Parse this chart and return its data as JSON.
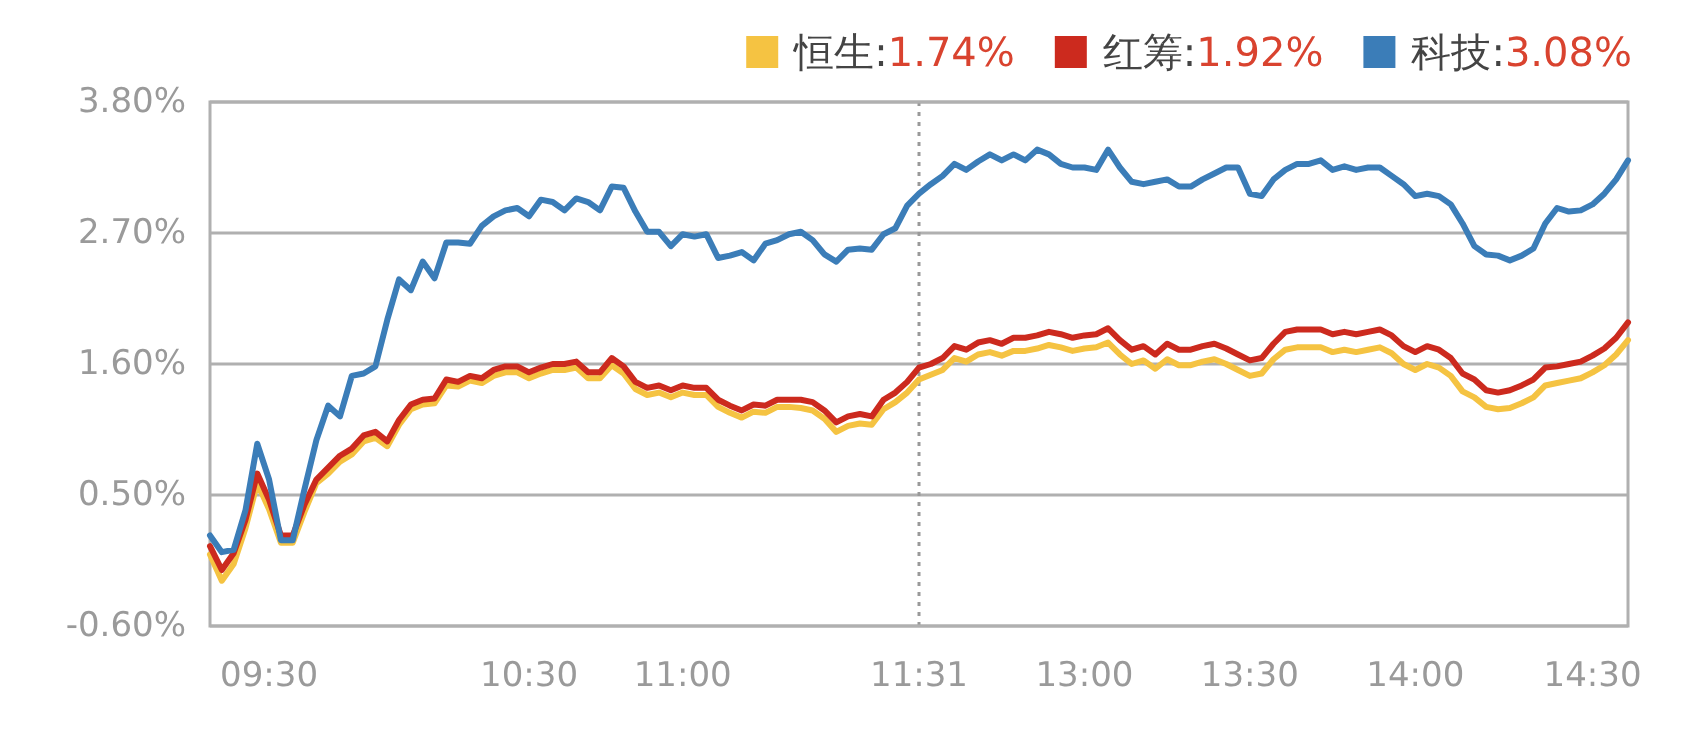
{
  "chart_data": {
    "type": "line",
    "legend": "top right",
    "grid": "y",
    "categories": [
      null,
      null,
      null,
      null,
      null,
      "09:30",
      null,
      null,
      null,
      null,
      null,
      null,
      null,
      null,
      null,
      null,
      null,
      null,
      null,
      null,
      null,
      null,
      null,
      null,
      null,
      null,
      null,
      "10:30",
      null,
      null,
      null,
      null,
      null,
      null,
      null,
      null,
      null,
      null,
      null,
      null,
      "11:00",
      null,
      null,
      null,
      null,
      null,
      null,
      null,
      null,
      null,
      null,
      null,
      null,
      null,
      null,
      null,
      null,
      null,
      null,
      null,
      "11:31",
      null,
      null,
      null,
      null,
      null,
      null,
      null,
      null,
      null,
      null,
      null,
      null,
      null,
      "13:00",
      null,
      null,
      null,
      null,
      null,
      null,
      null,
      null,
      null,
      null,
      null,
      null,
      null,
      "13:30",
      null,
      null,
      null,
      null,
      null,
      null,
      null,
      null,
      null,
      null,
      null,
      null,
      null,
      "14:00",
      null,
      null,
      null,
      null,
      null,
      null,
      null,
      null,
      null,
      null,
      null,
      null,
      null,
      null,
      "14:30",
      null,
      null,
      null
    ],
    "ylim": [
      -0.6,
      3.8
    ],
    "yticks": [
      {
        "value": -0.6,
        "label": "-0.60%"
      },
      {
        "value": 0.5,
        "label": "0.50%"
      },
      {
        "value": 1.6,
        "label": "1.60%"
      },
      {
        "value": 2.7,
        "label": "2.70%"
      },
      {
        "value": 3.8,
        "label": "3.80%"
      }
    ],
    "ref_lines": [
      {
        "axis": "x",
        "value": "11:31",
        "line_style": "dotted",
        "color": "#999999"
      }
    ],
    "series": [
      {
        "name": "恒生:1.74%",
        "color": "#f5c342",
        "values": [
          0.0,
          -0.22,
          -0.08,
          0.22,
          0.6,
          0.38,
          0.1,
          0.1,
          0.36,
          0.6,
          0.68,
          0.78,
          0.84,
          0.95,
          0.98,
          0.91,
          1.09,
          1.22,
          1.26,
          1.27,
          1.42,
          1.41,
          1.46,
          1.44,
          1.5,
          1.53,
          1.53,
          1.48,
          1.52,
          1.55,
          1.55,
          1.57,
          1.48,
          1.48,
          1.59,
          1.52,
          1.39,
          1.34,
          1.36,
          1.32,
          1.36,
          1.34,
          1.34,
          1.24,
          1.19,
          1.15,
          1.2,
          1.19,
          1.24,
          1.24,
          1.23,
          1.21,
          1.14,
          1.03,
          1.08,
          1.1,
          1.09,
          1.22,
          1.28,
          1.36,
          1.47,
          1.51,
          1.55,
          1.65,
          1.62,
          1.68,
          1.7,
          1.67,
          1.71,
          1.71,
          1.73,
          1.76,
          1.74,
          1.71,
          1.73,
          1.74,
          1.78,
          1.68,
          1.6,
          1.63,
          1.56,
          1.64,
          1.59,
          1.59,
          1.62,
          1.64,
          1.6,
          1.55,
          1.5,
          1.52,
          1.64,
          1.72,
          1.74,
          1.74,
          1.74,
          1.7,
          1.72,
          1.7,
          1.72,
          1.74,
          1.69,
          1.6,
          1.55,
          1.6,
          1.57,
          1.5,
          1.37,
          1.32,
          1.24,
          1.22,
          1.23,
          1.27,
          1.32,
          1.42,
          1.44,
          1.46,
          1.48,
          1.53,
          1.59,
          1.68,
          1.8
        ]
      },
      {
        "name": "红筹:1.92%",
        "color": "#cc2a1e",
        "values": [
          0.07,
          -0.13,
          0.01,
          0.29,
          0.68,
          0.46,
          0.16,
          0.16,
          0.42,
          0.63,
          0.73,
          0.83,
          0.89,
          1.0,
          1.03,
          0.95,
          1.13,
          1.26,
          1.3,
          1.31,
          1.47,
          1.45,
          1.5,
          1.48,
          1.55,
          1.58,
          1.58,
          1.53,
          1.57,
          1.6,
          1.6,
          1.62,
          1.53,
          1.53,
          1.65,
          1.58,
          1.45,
          1.4,
          1.42,
          1.38,
          1.42,
          1.4,
          1.4,
          1.3,
          1.25,
          1.21,
          1.26,
          1.25,
          1.3,
          1.3,
          1.3,
          1.28,
          1.21,
          1.11,
          1.16,
          1.18,
          1.16,
          1.3,
          1.36,
          1.45,
          1.57,
          1.6,
          1.65,
          1.75,
          1.72,
          1.78,
          1.8,
          1.77,
          1.82,
          1.82,
          1.84,
          1.87,
          1.85,
          1.82,
          1.84,
          1.85,
          1.9,
          1.8,
          1.72,
          1.75,
          1.68,
          1.77,
          1.72,
          1.72,
          1.75,
          1.77,
          1.73,
          1.68,
          1.63,
          1.65,
          1.77,
          1.87,
          1.89,
          1.89,
          1.89,
          1.85,
          1.87,
          1.85,
          1.87,
          1.89,
          1.84,
          1.75,
          1.7,
          1.75,
          1.72,
          1.65,
          1.52,
          1.47,
          1.38,
          1.36,
          1.38,
          1.42,
          1.47,
          1.57,
          1.58,
          1.6,
          1.62,
          1.67,
          1.73,
          1.82,
          1.95
        ]
      },
      {
        "name": "科技:3.08%",
        "color": "#3b7db8",
        "values": [
          0.16,
          0.02,
          0.04,
          0.37,
          0.93,
          0.63,
          0.12,
          0.12,
          0.55,
          0.96,
          1.25,
          1.16,
          1.5,
          1.52,
          1.58,
          1.97,
          2.31,
          2.22,
          2.46,
          2.32,
          2.62,
          2.62,
          2.61,
          2.76,
          2.84,
          2.89,
          2.91,
          2.84,
          2.98,
          2.96,
          2.89,
          2.99,
          2.96,
          2.89,
          3.09,
          3.08,
          2.88,
          2.71,
          2.71,
          2.59,
          2.69,
          2.67,
          2.69,
          2.49,
          2.51,
          2.54,
          2.47,
          2.61,
          2.64,
          2.69,
          2.71,
          2.64,
          2.52,
          2.46,
          2.56,
          2.57,
          2.56,
          2.69,
          2.74,
          2.93,
          3.03,
          3.11,
          3.18,
          3.28,
          3.23,
          3.3,
          3.36,
          3.31,
          3.36,
          3.31,
          3.4,
          3.36,
          3.28,
          3.25,
          3.25,
          3.23,
          3.4,
          3.25,
          3.13,
          3.11,
          3.13,
          3.15,
          3.09,
          3.09,
          3.15,
          3.2,
          3.25,
          3.25,
          3.03,
          3.01,
          3.15,
          3.23,
          3.28,
          3.28,
          3.31,
          3.23,
          3.26,
          3.23,
          3.25,
          3.25,
          3.18,
          3.11,
          3.01,
          3.03,
          3.01,
          2.94,
          2.78,
          2.59,
          2.52,
          2.51,
          2.47,
          2.51,
          2.57,
          2.78,
          2.91,
          2.88,
          2.89,
          2.94,
          3.03,
          3.15,
          3.31
        ]
      }
    ]
  }
}
